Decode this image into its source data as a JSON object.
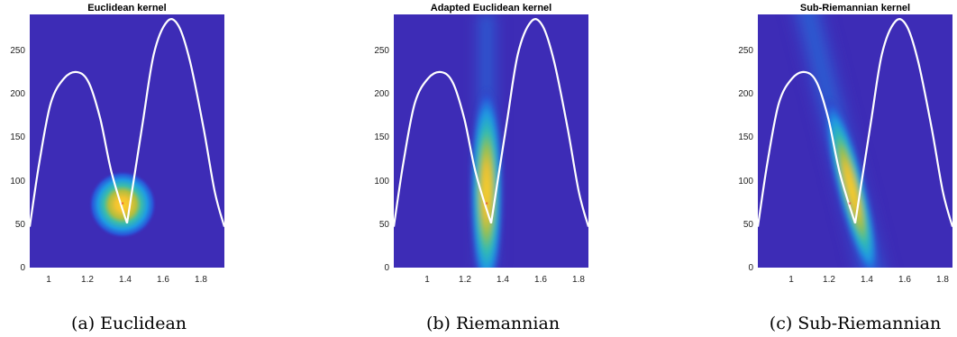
{
  "chart_data": [
    {
      "type": "heatmap",
      "title": "Euclidean kernel",
      "caption": "(a) Euclidean",
      "xlim": [
        0.82,
        1.84
      ],
      "ylim": [
        0,
        285
      ],
      "xticks": [
        1,
        1.2,
        1.4,
        1.6,
        1.8
      ],
      "yticks": [
        0,
        50,
        100,
        150,
        200,
        250
      ],
      "kernel_center": [
        1.31,
        71
      ],
      "colormap": "parula",
      "curve": {
        "x": [
          0.82,
          0.87,
          0.93,
          1.0,
          1.07,
          1.13,
          1.19,
          1.25,
          1.33,
          1.41,
          1.47,
          1.54,
          1.6,
          1.66,
          1.73,
          1.79,
          1.84
        ],
        "y": [
          46,
          118,
          185,
          213,
          220,
          208,
          167,
          106,
          50,
          160,
          240,
          277,
          272,
          232,
          158,
          85,
          46
        ]
      }
    },
    {
      "type": "heatmap",
      "title": "Adapted Euclidean kernel",
      "caption": "(b) Riemannian",
      "xlim": [
        0.82,
        1.84
      ],
      "ylim": [
        0,
        285
      ],
      "xticks": [
        1,
        1.2,
        1.4,
        1.6,
        1.8
      ],
      "yticks": [
        0,
        50,
        100,
        150,
        200,
        250
      ],
      "kernel_center": [
        1.31,
        71
      ],
      "colormap": "parula",
      "curve": {
        "x": [
          0.82,
          0.87,
          0.93,
          1.0,
          1.07,
          1.13,
          1.19,
          1.25,
          1.33,
          1.41,
          1.47,
          1.54,
          1.6,
          1.66,
          1.73,
          1.79,
          1.84
        ],
        "y": [
          46,
          118,
          185,
          213,
          220,
          208,
          167,
          106,
          50,
          160,
          240,
          277,
          272,
          232,
          158,
          85,
          46
        ]
      }
    },
    {
      "type": "heatmap",
      "title": "Sub-Riemannian kernel",
      "caption": "(c) Sub-Riemannian",
      "xlim": [
        0.82,
        1.84
      ],
      "ylim": [
        0,
        285
      ],
      "xticks": [
        1,
        1.2,
        1.4,
        1.6,
        1.8
      ],
      "yticks": [
        0,
        50,
        100,
        150,
        200,
        250
      ],
      "kernel_center": [
        1.31,
        71
      ],
      "colormap": "parula",
      "curve": {
        "x": [
          0.82,
          0.87,
          0.93,
          1.0,
          1.07,
          1.13,
          1.19,
          1.25,
          1.33,
          1.41,
          1.47,
          1.54,
          1.6,
          1.66,
          1.73,
          1.79,
          1.84
        ],
        "y": [
          46,
          118,
          185,
          213,
          220,
          208,
          167,
          106,
          50,
          160,
          240,
          277,
          272,
          232,
          158,
          85,
          46
        ]
      }
    }
  ]
}
